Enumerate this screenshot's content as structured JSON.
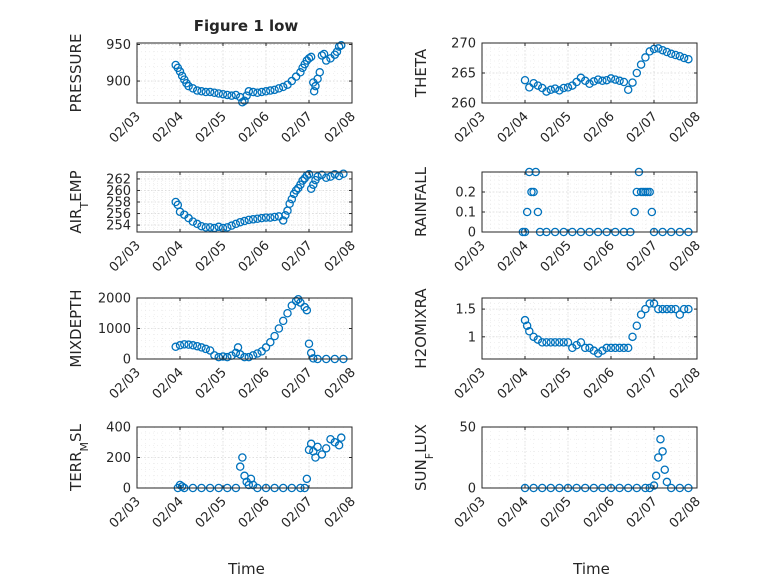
{
  "figure_title": "Figure 1 low",
  "chart_data": [
    {
      "id": "pressure",
      "type": "scatter",
      "ylabel": "PRESSURE",
      "ylim": [
        870,
        952
      ],
      "yticks": [
        900,
        950
      ],
      "xlim": [
        0,
        5
      ],
      "xticks": [
        "02/03",
        "02/04",
        "02/05",
        "02/06",
        "02/07",
        "02/08"
      ],
      "xlabel": "",
      "grid": true,
      "points": [
        [
          0.9,
          922
        ],
        [
          0.95,
          918
        ],
        [
          1.0,
          913
        ],
        [
          1.05,
          907
        ],
        [
          1.1,
          902
        ],
        [
          1.15,
          897
        ],
        [
          1.2,
          893
        ],
        [
          1.3,
          890
        ],
        [
          1.4,
          887
        ],
        [
          1.5,
          886
        ],
        [
          1.6,
          885
        ],
        [
          1.7,
          885
        ],
        [
          1.8,
          884
        ],
        [
          1.9,
          883
        ],
        [
          2.0,
          882
        ],
        [
          2.1,
          881
        ],
        [
          2.2,
          880
        ],
        [
          2.3,
          881
        ],
        [
          2.4,
          878
        ],
        [
          2.45,
          871
        ],
        [
          2.5,
          873
        ],
        [
          2.55,
          880
        ],
        [
          2.6,
          886
        ],
        [
          2.7,
          885
        ],
        [
          2.8,
          884
        ],
        [
          2.9,
          885
        ],
        [
          3.0,
          886
        ],
        [
          3.1,
          887
        ],
        [
          3.2,
          888
        ],
        [
          3.3,
          890
        ],
        [
          3.4,
          892
        ],
        [
          3.5,
          895
        ],
        [
          3.6,
          900
        ],
        [
          3.7,
          906
        ],
        [
          3.8,
          912
        ],
        [
          3.85,
          918
        ],
        [
          3.9,
          923
        ],
        [
          3.95,
          928
        ],
        [
          4.0,
          931
        ],
        [
          4.05,
          933
        ],
        [
          4.1,
          898
        ],
        [
          4.12,
          886
        ],
        [
          4.15,
          893
        ],
        [
          4.2,
          903
        ],
        [
          4.25,
          912
        ],
        [
          4.3,
          935
        ],
        [
          4.35,
          937
        ],
        [
          4.4,
          928
        ],
        [
          4.5,
          931
        ],
        [
          4.6,
          936
        ],
        [
          4.65,
          940
        ],
        [
          4.7,
          947
        ],
        [
          4.75,
          949
        ]
      ]
    },
    {
      "id": "theta",
      "type": "scatter",
      "ylabel": "THETA",
      "ylim": [
        260,
        270
      ],
      "yticks": [
        260,
        265,
        270
      ],
      "xlim": [
        0,
        5
      ],
      "xticks": [
        "02/03",
        "02/04",
        "02/05",
        "02/06",
        "02/07",
        "02/08"
      ],
      "xlabel": "",
      "grid": true,
      "points": [
        [
          1.0,
          263.8
        ],
        [
          1.1,
          262.6
        ],
        [
          1.2,
          263.3
        ],
        [
          1.3,
          262.9
        ],
        [
          1.4,
          262.5
        ],
        [
          1.5,
          261.9
        ],
        [
          1.6,
          262.2
        ],
        [
          1.7,
          262.4
        ],
        [
          1.8,
          262.1
        ],
        [
          1.9,
          262.5
        ],
        [
          2.0,
          262.6
        ],
        [
          2.1,
          262.9
        ],
        [
          2.2,
          263.5
        ],
        [
          2.3,
          264.2
        ],
        [
          2.4,
          263.7
        ],
        [
          2.5,
          263.2
        ],
        [
          2.6,
          263.6
        ],
        [
          2.7,
          263.9
        ],
        [
          2.8,
          263.7
        ],
        [
          2.9,
          263.8
        ],
        [
          3.0,
          264.1
        ],
        [
          3.1,
          263.9
        ],
        [
          3.2,
          263.7
        ],
        [
          3.3,
          263.5
        ],
        [
          3.4,
          262.2
        ],
        [
          3.5,
          263.4
        ],
        [
          3.6,
          265.0
        ],
        [
          3.7,
          266.4
        ],
        [
          3.8,
          267.6
        ],
        [
          3.9,
          268.6
        ],
        [
          4.0,
          269.0
        ],
        [
          4.1,
          269.1
        ],
        [
          4.2,
          268.8
        ],
        [
          4.3,
          268.5
        ],
        [
          4.4,
          268.2
        ],
        [
          4.5,
          268.0
        ],
        [
          4.6,
          267.8
        ],
        [
          4.7,
          267.5
        ],
        [
          4.8,
          267.3
        ]
      ]
    },
    {
      "id": "air_temp",
      "type": "scatter",
      "ylabel": "AIR_TEMP",
      "ylim": [
        252.8,
        263.2
      ],
      "yticks": [
        254,
        256,
        258,
        260,
        262
      ],
      "xlim": [
        0,
        5
      ],
      "xticks": [
        "02/03",
        "02/04",
        "02/05",
        "02/06",
        "02/07",
        "02/08"
      ],
      "xlabel": "",
      "grid": true,
      "points": [
        [
          0.9,
          258.0
        ],
        [
          0.95,
          257.5
        ],
        [
          1.0,
          256.3
        ],
        [
          1.1,
          255.8
        ],
        [
          1.2,
          255.2
        ],
        [
          1.3,
          254.6
        ],
        [
          1.4,
          254.2
        ],
        [
          1.5,
          253.8
        ],
        [
          1.6,
          253.6
        ],
        [
          1.7,
          253.6
        ],
        [
          1.8,
          253.5
        ],
        [
          1.9,
          253.7
        ],
        [
          2.0,
          253.5
        ],
        [
          2.1,
          253.6
        ],
        [
          2.2,
          253.9
        ],
        [
          2.3,
          254.2
        ],
        [
          2.4,
          254.5
        ],
        [
          2.5,
          254.7
        ],
        [
          2.6,
          254.9
        ],
        [
          2.7,
          255.0
        ],
        [
          2.8,
          255.1
        ],
        [
          2.9,
          255.2
        ],
        [
          3.0,
          255.3
        ],
        [
          3.1,
          255.3
        ],
        [
          3.2,
          255.4
        ],
        [
          3.3,
          255.5
        ],
        [
          3.4,
          254.8
        ],
        [
          3.45,
          255.7
        ],
        [
          3.5,
          256.5
        ],
        [
          3.55,
          257.7
        ],
        [
          3.6,
          258.5
        ],
        [
          3.65,
          259.4
        ],
        [
          3.7,
          260.0
        ],
        [
          3.75,
          260.4
        ],
        [
          3.8,
          261.0
        ],
        [
          3.85,
          261.7
        ],
        [
          3.9,
          262.1
        ],
        [
          3.95,
          262.6
        ],
        [
          4.0,
          262.8
        ],
        [
          4.05,
          260.3
        ],
        [
          4.1,
          261.0
        ],
        [
          4.15,
          261.8
        ],
        [
          4.2,
          262.4
        ],
        [
          4.3,
          262.7
        ],
        [
          4.4,
          262.2
        ],
        [
          4.5,
          262.4
        ],
        [
          4.6,
          262.8
        ],
        [
          4.7,
          262.5
        ],
        [
          4.8,
          262.9
        ]
      ]
    },
    {
      "id": "rainfall",
      "type": "scatter",
      "ylabel": "RAINFALL",
      "ylim": [
        0,
        0.3
      ],
      "yticks": [
        0,
        0.1,
        0.2
      ],
      "xlim": [
        0,
        5
      ],
      "xticks": [
        "02/03",
        "02/04",
        "02/05",
        "02/06",
        "02/07",
        "02/08"
      ],
      "xlabel": "",
      "grid": true,
      "points": [
        [
          0.95,
          0
        ],
        [
          1.0,
          0
        ],
        [
          1.05,
          0.1
        ],
        [
          1.1,
          0.3
        ],
        [
          1.15,
          0.2
        ],
        [
          1.2,
          0.2
        ],
        [
          1.25,
          0.3
        ],
        [
          1.3,
          0.1
        ],
        [
          1.35,
          0
        ],
        [
          1.5,
          0
        ],
        [
          1.7,
          0
        ],
        [
          1.9,
          0
        ],
        [
          2.1,
          0
        ],
        [
          2.3,
          0
        ],
        [
          2.5,
          0
        ],
        [
          2.7,
          0
        ],
        [
          2.9,
          0
        ],
        [
          3.1,
          0
        ],
        [
          3.3,
          0
        ],
        [
          3.45,
          0
        ],
        [
          3.55,
          0.1
        ],
        [
          3.6,
          0.2
        ],
        [
          3.65,
          0.3
        ],
        [
          3.7,
          0.2
        ],
        [
          3.75,
          0.2
        ],
        [
          3.8,
          0.2
        ],
        [
          3.85,
          0.2
        ],
        [
          3.9,
          0.2
        ],
        [
          3.95,
          0.1
        ],
        [
          4.0,
          0
        ],
        [
          4.2,
          0
        ],
        [
          4.4,
          0
        ],
        [
          4.6,
          0
        ],
        [
          4.8,
          0
        ]
      ]
    },
    {
      "id": "mixdepth",
      "type": "scatter",
      "ylabel": "MIXDEPTH",
      "ylim": [
        0,
        2000
      ],
      "yticks": [
        0,
        1000,
        2000
      ],
      "xlim": [
        0,
        5
      ],
      "xticks": [
        "02/03",
        "02/04",
        "02/05",
        "02/06",
        "02/07",
        "02/08"
      ],
      "xlabel": "",
      "grid": true,
      "points": [
        [
          0.9,
          400
        ],
        [
          1.0,
          450
        ],
        [
          1.1,
          480
        ],
        [
          1.2,
          470
        ],
        [
          1.3,
          450
        ],
        [
          1.4,
          420
        ],
        [
          1.5,
          380
        ],
        [
          1.6,
          330
        ],
        [
          1.7,
          280
        ],
        [
          1.8,
          120
        ],
        [
          1.9,
          60
        ],
        [
          2.0,
          80
        ],
        [
          2.1,
          60
        ],
        [
          2.2,
          110
        ],
        [
          2.3,
          200
        ],
        [
          2.35,
          380
        ],
        [
          2.4,
          150
        ],
        [
          2.5,
          60
        ],
        [
          2.6,
          60
        ],
        [
          2.7,
          120
        ],
        [
          2.8,
          180
        ],
        [
          2.9,
          250
        ],
        [
          3.0,
          380
        ],
        [
          3.1,
          550
        ],
        [
          3.2,
          750
        ],
        [
          3.3,
          1000
        ],
        [
          3.4,
          1250
        ],
        [
          3.5,
          1500
        ],
        [
          3.6,
          1750
        ],
        [
          3.7,
          1900
        ],
        [
          3.75,
          1960
        ],
        [
          3.8,
          1850
        ],
        [
          3.9,
          1700
        ],
        [
          3.95,
          1600
        ],
        [
          4.0,
          500
        ],
        [
          4.05,
          200
        ],
        [
          4.1,
          20
        ],
        [
          4.2,
          0
        ],
        [
          4.4,
          0
        ],
        [
          4.6,
          0
        ],
        [
          4.8,
          0
        ]
      ]
    },
    {
      "id": "h2omixra",
      "type": "scatter",
      "ylabel": "H2OMIXRA",
      "ylim": [
        0.6,
        1.7
      ],
      "yticks": [
        1,
        1.5
      ],
      "xlim": [
        0,
        5
      ],
      "xticks": [
        "02/03",
        "02/04",
        "02/05",
        "02/06",
        "02/07",
        "02/08"
      ],
      "xlabel": "",
      "grid": true,
      "points": [
        [
          1.0,
          1.3
        ],
        [
          1.05,
          1.2
        ],
        [
          1.1,
          1.1
        ],
        [
          1.2,
          1.0
        ],
        [
          1.3,
          0.95
        ],
        [
          1.4,
          0.9
        ],
        [
          1.5,
          0.9
        ],
        [
          1.6,
          0.9
        ],
        [
          1.7,
          0.9
        ],
        [
          1.8,
          0.9
        ],
        [
          1.9,
          0.9
        ],
        [
          2.0,
          0.9
        ],
        [
          2.1,
          0.8
        ],
        [
          2.2,
          0.85
        ],
        [
          2.3,
          0.9
        ],
        [
          2.4,
          0.8
        ],
        [
          2.5,
          0.8
        ],
        [
          2.6,
          0.75
        ],
        [
          2.7,
          0.7
        ],
        [
          2.8,
          0.75
        ],
        [
          2.9,
          0.8
        ],
        [
          3.0,
          0.8
        ],
        [
          3.1,
          0.8
        ],
        [
          3.2,
          0.8
        ],
        [
          3.3,
          0.8
        ],
        [
          3.4,
          0.8
        ],
        [
          3.5,
          1.0
        ],
        [
          3.6,
          1.2
        ],
        [
          3.7,
          1.4
        ],
        [
          3.8,
          1.5
        ],
        [
          3.9,
          1.6
        ],
        [
          4.0,
          1.6
        ],
        [
          4.1,
          1.5
        ],
        [
          4.2,
          1.5
        ],
        [
          4.3,
          1.5
        ],
        [
          4.4,
          1.5
        ],
        [
          4.5,
          1.5
        ],
        [
          4.6,
          1.4
        ],
        [
          4.7,
          1.5
        ],
        [
          4.8,
          1.5
        ]
      ]
    },
    {
      "id": "terr_msl",
      "type": "scatter",
      "ylabel": "TERR_MSL",
      "ylim": [
        0,
        400
      ],
      "yticks": [
        0,
        200,
        400
      ],
      "xlim": [
        0,
        5
      ],
      "xticks": [
        "02/03",
        "02/04",
        "02/05",
        "02/06",
        "02/07",
        "02/08"
      ],
      "xlabel": "Time",
      "grid": true,
      "points": [
        [
          0.95,
          0
        ],
        [
          1.0,
          20
        ],
        [
          1.05,
          10
        ],
        [
          1.1,
          0
        ],
        [
          1.3,
          0
        ],
        [
          1.5,
          0
        ],
        [
          1.7,
          0
        ],
        [
          1.9,
          0
        ],
        [
          2.1,
          0
        ],
        [
          2.3,
          0
        ],
        [
          2.4,
          140
        ],
        [
          2.45,
          200
        ],
        [
          2.5,
          80
        ],
        [
          2.55,
          40
        ],
        [
          2.6,
          20
        ],
        [
          2.65,
          60
        ],
        [
          2.7,
          20
        ],
        [
          2.8,
          0
        ],
        [
          3.0,
          0
        ],
        [
          3.2,
          0
        ],
        [
          3.4,
          0
        ],
        [
          3.6,
          0
        ],
        [
          3.8,
          0
        ],
        [
          3.9,
          0
        ],
        [
          3.95,
          60
        ],
        [
          4.0,
          250
        ],
        [
          4.05,
          290
        ],
        [
          4.1,
          240
        ],
        [
          4.15,
          200
        ],
        [
          4.2,
          270
        ],
        [
          4.3,
          220
        ],
        [
          4.4,
          260
        ],
        [
          4.5,
          320
        ],
        [
          4.6,
          300
        ],
        [
          4.7,
          280
        ],
        [
          4.75,
          330
        ]
      ]
    },
    {
      "id": "sun_flux",
      "type": "scatter",
      "ylabel": "SUN_FLUX",
      "ylim": [
        0,
        50
      ],
      "yticks": [
        0,
        50
      ],
      "xlim": [
        0,
        5
      ],
      "xticks": [
        "02/03",
        "02/04",
        "02/05",
        "02/06",
        "02/07",
        "02/08"
      ],
      "xlabel": "Time",
      "grid": true,
      "points": [
        [
          1.0,
          0
        ],
        [
          1.2,
          0
        ],
        [
          1.4,
          0
        ],
        [
          1.6,
          0
        ],
        [
          1.8,
          0
        ],
        [
          2.0,
          0
        ],
        [
          2.2,
          0
        ],
        [
          2.4,
          0
        ],
        [
          2.6,
          0
        ],
        [
          2.8,
          0
        ],
        [
          3.0,
          0
        ],
        [
          3.2,
          0
        ],
        [
          3.4,
          0
        ],
        [
          3.6,
          0
        ],
        [
          3.8,
          0
        ],
        [
          3.9,
          0
        ],
        [
          4.0,
          2
        ],
        [
          4.05,
          10
        ],
        [
          4.1,
          25
        ],
        [
          4.15,
          40
        ],
        [
          4.2,
          30
        ],
        [
          4.25,
          15
        ],
        [
          4.3,
          5
        ],
        [
          4.4,
          0
        ],
        [
          4.6,
          0
        ],
        [
          4.8,
          0
        ]
      ]
    }
  ]
}
